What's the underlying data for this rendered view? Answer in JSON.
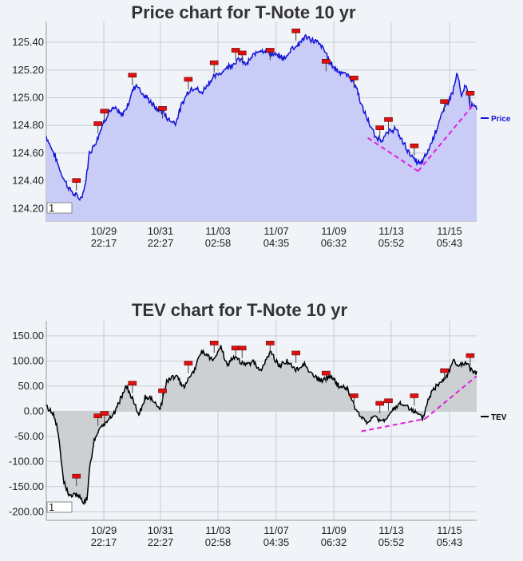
{
  "chart_data": [
    {
      "type": "area",
      "title": "Price chart for T-Note 10 yr",
      "series": [
        {
          "name": "Price",
          "color": "#1414d8",
          "fill": "#c9ccf6"
        }
      ],
      "x_ticks": [
        {
          "date": "10/29",
          "time": "22:17"
        },
        {
          "date": "10/31",
          "time": "22:27"
        },
        {
          "date": "11/03",
          "time": "02:58"
        },
        {
          "date": "11/07",
          "time": "04:35"
        },
        {
          "date": "11/09",
          "time": "06:32"
        },
        {
          "date": "11/13",
          "time": "05:52"
        },
        {
          "date": "11/15",
          "time": "05:43"
        }
      ],
      "y_ticks": [
        "124.20",
        "124.40",
        "124.60",
        "124.80",
        "125.00",
        "125.20",
        "125.40"
      ],
      "ylim": [
        124.11,
        125.55
      ],
      "box_label": "1",
      "trend_lines": [
        {
          "from": [
            0.747,
            124.71
          ],
          "to": [
            0.864,
            124.47
          ]
        },
        {
          "from": [
            0.864,
            124.47
          ],
          "to": [
            0.995,
            124.96
          ]
        }
      ],
      "anchors": [
        [
          0,
          124.72
        ],
        [
          0.02,
          124.58
        ],
        [
          0.035,
          124.45
        ],
        [
          0.05,
          124.36
        ],
        [
          0.065,
          124.3
        ],
        [
          0.08,
          124.27
        ],
        [
          0.09,
          124.36
        ],
        [
          0.1,
          124.6
        ],
        [
          0.115,
          124.68
        ],
        [
          0.13,
          124.8
        ],
        [
          0.145,
          124.9
        ],
        [
          0.16,
          124.92
        ],
        [
          0.175,
          124.87
        ],
        [
          0.19,
          124.95
        ],
        [
          0.2,
          125.05
        ],
        [
          0.21,
          125.1
        ],
        [
          0.225,
          125.02
        ],
        [
          0.24,
          124.98
        ],
        [
          0.255,
          124.92
        ],
        [
          0.27,
          124.9
        ],
        [
          0.285,
          124.84
        ],
        [
          0.3,
          124.82
        ],
        [
          0.315,
          124.95
        ],
        [
          0.33,
          125.05
        ],
        [
          0.345,
          125.08
        ],
        [
          0.36,
          125.03
        ],
        [
          0.375,
          125.1
        ],
        [
          0.39,
          125.15
        ],
        [
          0.405,
          125.18
        ],
        [
          0.42,
          125.22
        ],
        [
          0.435,
          125.25
        ],
        [
          0.45,
          125.28
        ],
        [
          0.465,
          125.24
        ],
        [
          0.48,
          125.3
        ],
        [
          0.495,
          125.35
        ],
        [
          0.51,
          125.34
        ],
        [
          0.525,
          125.31
        ],
        [
          0.54,
          125.3
        ],
        [
          0.555,
          125.28
        ],
        [
          0.57,
          125.36
        ],
        [
          0.585,
          125.38
        ],
        [
          0.6,
          125.44
        ],
        [
          0.615,
          125.42
        ],
        [
          0.63,
          125.4
        ],
        [
          0.645,
          125.35
        ],
        [
          0.66,
          125.25
        ],
        [
          0.675,
          125.2
        ],
        [
          0.69,
          125.18
        ],
        [
          0.705,
          125.15
        ],
        [
          0.72,
          125.08
        ],
        [
          0.735,
          124.92
        ],
        [
          0.75,
          124.82
        ],
        [
          0.765,
          124.71
        ],
        [
          0.78,
          124.7
        ],
        [
          0.795,
          124.75
        ],
        [
          0.81,
          124.78
        ],
        [
          0.825,
          124.7
        ],
        [
          0.84,
          124.62
        ],
        [
          0.855,
          124.55
        ],
        [
          0.87,
          124.52
        ],
        [
          0.885,
          124.6
        ],
        [
          0.9,
          124.72
        ],
        [
          0.915,
          124.85
        ],
        [
          0.93,
          124.95
        ],
        [
          0.945,
          125.05
        ],
        [
          0.955,
          125.18
        ],
        [
          0.965,
          125.0
        ],
        [
          0.975,
          125.1
        ],
        [
          0.985,
          124.95
        ],
        [
          1.0,
          124.92
        ]
      ],
      "markers": [
        [
          0.07,
          124.4
        ],
        [
          0.12,
          124.81
        ],
        [
          0.135,
          124.9
        ],
        [
          0.2,
          125.16
        ],
        [
          0.27,
          124.92
        ],
        [
          0.33,
          125.13
        ],
        [
          0.39,
          125.25
        ],
        [
          0.44,
          125.34
        ],
        [
          0.455,
          125.32
        ],
        [
          0.52,
          125.34
        ],
        [
          0.58,
          125.48
        ],
        [
          0.65,
          125.26
        ],
        [
          0.715,
          125.14
        ],
        [
          0.775,
          124.78
        ],
        [
          0.795,
          124.84
        ],
        [
          0.855,
          124.65
        ],
        [
          0.925,
          124.97
        ],
        [
          0.985,
          125.03
        ]
      ]
    },
    {
      "type": "area",
      "title": "TEV chart for T-Note 10 yr",
      "series": [
        {
          "name": "TEV",
          "color": "#000000",
          "fill": "#ccd0d3"
        }
      ],
      "x_ticks": [
        {
          "date": "10/29",
          "time": "22:17"
        },
        {
          "date": "10/31",
          "time": "22:27"
        },
        {
          "date": "11/03",
          "time": "02:58"
        },
        {
          "date": "11/07",
          "time": "04:35"
        },
        {
          "date": "11/09",
          "time": "06:32"
        },
        {
          "date": "11/13",
          "time": "05:52"
        },
        {
          "date": "11/15",
          "time": "05:43"
        }
      ],
      "y_ticks": [
        "-200.00",
        "-150.00",
        "-100.00",
        "-50.00",
        "0.00",
        "50.00",
        "100.00",
        "150.00"
      ],
      "ylim": [
        -217,
        180
      ],
      "box_label": "1",
      "trend_lines": [
        {
          "from": [
            0.732,
            -40
          ],
          "to": [
            0.88,
            -15
          ]
        },
        {
          "from": [
            0.88,
            -15
          ],
          "to": [
            1.0,
            70
          ]
        }
      ],
      "anchors": [
        [
          0,
          10
        ],
        [
          0.02,
          -10
        ],
        [
          0.03,
          -60
        ],
        [
          0.04,
          -140
        ],
        [
          0.055,
          -170
        ],
        [
          0.07,
          -165
        ],
        [
          0.085,
          -180
        ],
        [
          0.095,
          -175
        ],
        [
          0.1,
          -120
        ],
        [
          0.11,
          -60
        ],
        [
          0.125,
          -30
        ],
        [
          0.14,
          -20
        ],
        [
          0.155,
          -10
        ],
        [
          0.17,
          20
        ],
        [
          0.185,
          50
        ],
        [
          0.2,
          25
        ],
        [
          0.215,
          -10
        ],
        [
          0.23,
          30
        ],
        [
          0.25,
          20
        ],
        [
          0.265,
          5
        ],
        [
          0.28,
          60
        ],
        [
          0.3,
          70
        ],
        [
          0.32,
          50
        ],
        [
          0.345,
          85
        ],
        [
          0.36,
          120
        ],
        [
          0.375,
          110
        ],
        [
          0.39,
          100
        ],
        [
          0.405,
          130
        ],
        [
          0.42,
          90
        ],
        [
          0.44,
          110
        ],
        [
          0.46,
          90
        ],
        [
          0.48,
          100
        ],
        [
          0.5,
          80
        ],
        [
          0.52,
          120
        ],
        [
          0.54,
          90
        ],
        [
          0.56,
          100
        ],
        [
          0.58,
          80
        ],
        [
          0.6,
          95
        ],
        [
          0.62,
          70
        ],
        [
          0.64,
          60
        ],
        [
          0.66,
          70
        ],
        [
          0.68,
          50
        ],
        [
          0.7,
          45
        ],
        [
          0.715,
          10
        ],
        [
          0.73,
          -10
        ],
        [
          0.745,
          -25
        ],
        [
          0.76,
          -10
        ],
        [
          0.78,
          -20
        ],
        [
          0.8,
          -5
        ],
        [
          0.82,
          15
        ],
        [
          0.84,
          10
        ],
        [
          0.86,
          -5
        ],
        [
          0.875,
          -15
        ],
        [
          0.89,
          30
        ],
        [
          0.91,
          55
        ],
        [
          0.93,
          70
        ],
        [
          0.945,
          100
        ],
        [
          0.96,
          90
        ],
        [
          0.975,
          95
        ],
        [
          0.99,
          80
        ],
        [
          1.0,
          75
        ]
      ],
      "markers": [
        [
          0.07,
          -130
        ],
        [
          0.12,
          -10
        ],
        [
          0.135,
          -5
        ],
        [
          0.2,
          55
        ],
        [
          0.27,
          40
        ],
        [
          0.33,
          95
        ],
        [
          0.39,
          135
        ],
        [
          0.44,
          125
        ],
        [
          0.455,
          125
        ],
        [
          0.52,
          135
        ],
        [
          0.58,
          115
        ],
        [
          0.65,
          75
        ],
        [
          0.715,
          30
        ],
        [
          0.775,
          15
        ],
        [
          0.795,
          20
        ],
        [
          0.855,
          30
        ],
        [
          0.925,
          80
        ],
        [
          0.985,
          110
        ]
      ]
    }
  ]
}
